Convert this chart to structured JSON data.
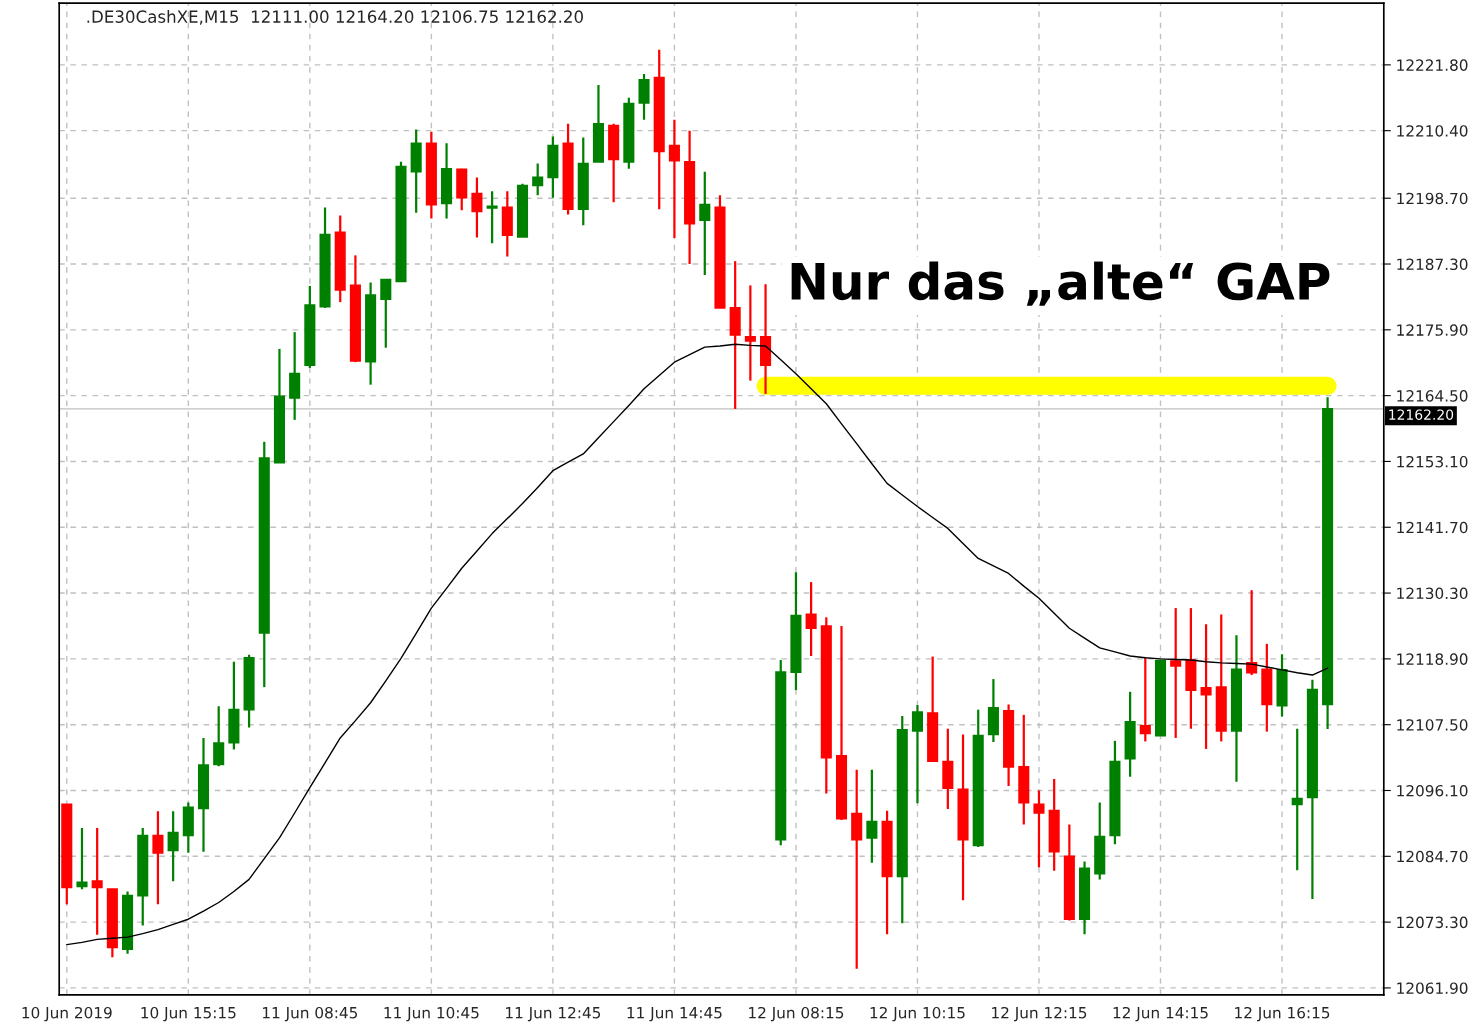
{
  "chart_data": {
    "type": "candlestick",
    "title": ".DE30CashXE,M15  12111.00 12164.20 12106.75 12162.20",
    "categories": [
      "10 Jun 2019",
      null,
      null,
      null,
      null,
      null,
      null,
      null,
      "10 Jun 15:15",
      null,
      null,
      null,
      null,
      null,
      null,
      null,
      "11 Jun 08:45",
      null,
      null,
      null,
      null,
      null,
      null,
      null,
      "11 Jun 10:45",
      null,
      null,
      null,
      null,
      null,
      null,
      null,
      "11 Jun 12:45",
      null,
      null,
      null,
      null,
      null,
      null,
      null,
      "11 Jun 14:45",
      null,
      null,
      null,
      null,
      null,
      null,
      null,
      "12 Jun 08:15",
      null,
      null,
      null,
      null,
      null,
      null,
      null,
      "12 Jun 10:15",
      null,
      null,
      null,
      null,
      null,
      null,
      null,
      "12 Jun 12:15",
      null,
      null,
      null,
      null,
      null,
      null,
      null,
      "12 Jun 14:15",
      null,
      null,
      null,
      null,
      null,
      null,
      null,
      "12 Jun 16:15",
      null,
      null,
      null
    ],
    "ohlc": [
      [
        12093.7,
        12093.7,
        12076.4,
        12079.3
      ],
      [
        12079.5,
        12089.6,
        12079.0,
        12080.2
      ],
      [
        12080.4,
        12089.6,
        12071.1,
        12079.3
      ],
      [
        12079.0,
        12079.0,
        12067.2,
        12068.9
      ],
      [
        12068.6,
        12078.6,
        12067.8,
        12077.9
      ],
      [
        12077.9,
        12089.6,
        12072.7,
        12088.3
      ],
      [
        12088.3,
        12092.5,
        12076.4,
        12085.3
      ],
      [
        12085.7,
        12092.5,
        12080.4,
        12088.8
      ],
      [
        12088.3,
        12094.0,
        12085.3,
        12093.2
      ],
      [
        12093.0,
        12105.2,
        12085.5,
        12100.5
      ],
      [
        12100.6,
        12110.7,
        12100.3,
        12104.3
      ],
      [
        12104.4,
        12118.4,
        12103.2,
        12110.1
      ],
      [
        12110.1,
        12119.6,
        12107.0,
        12119.1
      ],
      [
        12123.4,
        12156.5,
        12114.0,
        12153.7
      ],
      [
        12152.9,
        12172.6,
        12152.9,
        12164.4
      ],
      [
        12164.1,
        12175.5,
        12160.3,
        12168.3
      ],
      [
        12169.8,
        12183.5,
        12169.3,
        12180.2
      ],
      [
        12179.9,
        12197.1,
        12179.7,
        12192.4
      ],
      [
        12192.8,
        12195.7,
        12180.7,
        12182.8
      ],
      [
        12183.6,
        12188.8,
        12170.3,
        12170.5
      ],
      [
        12170.4,
        12184.1,
        12166.4,
        12181.9
      ],
      [
        12181.2,
        12184.6,
        12172.8,
        12184.6
      ],
      [
        12184.3,
        12205.0,
        12184.3,
        12204.2
      ],
      [
        12203.3,
        12210.6,
        12196.2,
        12208.2
      ],
      [
        12208.2,
        12210.2,
        12195.2,
        12197.6
      ],
      [
        12197.8,
        12208.2,
        12195.2,
        12203.8
      ],
      [
        12203.7,
        12203.8,
        12196.6,
        12198.8
      ],
      [
        12199.5,
        12202.3,
        12191.9,
        12196.4
      ],
      [
        12197.0,
        12199.9,
        12190.9,
        12197.3
      ],
      [
        12197.1,
        12199.9,
        12188.6,
        12192.3
      ],
      [
        12192.0,
        12201.2,
        12192.0,
        12200.9
      ],
      [
        12200.9,
        12204.7,
        12199.2,
        12202.3
      ],
      [
        12202.3,
        12209.4,
        12198.8,
        12207.8
      ],
      [
        12208.2,
        12211.6,
        12195.9,
        12196.8
      ],
      [
        12196.8,
        12209.2,
        12194.0,
        12204.7
      ],
      [
        12205.0,
        12218.3,
        12205.0,
        12211.6
      ],
      [
        12211.3,
        12211.6,
        12198.0,
        12205.4
      ],
      [
        12205.0,
        12216.1,
        12203.8,
        12215.1
      ],
      [
        12215.2,
        12220.2,
        12212.3,
        12219.2
      ],
      [
        12219.6,
        12224.4,
        12196.8,
        12206.8
      ],
      [
        12207.8,
        12212.3,
        12191.8,
        12205.2
      ],
      [
        12205.0,
        12210.4,
        12187.3,
        12194.3
      ],
      [
        12194.9,
        12203.3,
        12185.4,
        12197.6
      ],
      [
        12197.1,
        12199.2,
        12179.7,
        12179.7
      ],
      [
        12179.7,
        12187.8,
        12162.2,
        12175.0
      ],
      [
        12174.7,
        12183.6,
        12167.1,
        12174.0
      ],
      [
        12174.7,
        12183.8,
        12164.8,
        12169.8
      ],
      [
        12087.6,
        12118.7,
        12086.6,
        12116.6
      ],
      [
        12116.6,
        12133.9,
        12113.5,
        12126.4
      ],
      [
        12126.6,
        12132.2,
        12119.4,
        12124.2
      ],
      [
        12124.6,
        12126.1,
        12095.6,
        12101.8
      ],
      [
        12102.1,
        12124.6,
        12091.0,
        12091.2
      ],
      [
        12092.1,
        12099.7,
        12065.2,
        12087.6
      ],
      [
        12087.9,
        12099.7,
        12083.6,
        12090.7
      ],
      [
        12090.7,
        12092.6,
        12071.2,
        12081.2
      ],
      [
        12081.2,
        12109.0,
        12073.1,
        12106.6
      ],
      [
        12106.4,
        12110.9,
        12093.9,
        12109.7
      ],
      [
        12109.5,
        12119.3,
        12101.2,
        12101.2
      ],
      [
        12101.1,
        12106.8,
        12092.9,
        12096.5
      ],
      [
        12096.3,
        12105.8,
        12077.1,
        12087.6
      ],
      [
        12086.6,
        12110.1,
        12086.3,
        12105.6
      ],
      [
        12105.8,
        12115.4,
        12104.5,
        12110.4
      ],
      [
        12109.9,
        12111.0,
        12096.9,
        12100.2
      ],
      [
        12100.2,
        12109.2,
        12090.2,
        12094.0
      ],
      [
        12093.7,
        12096.1,
        12082.8,
        12092.2
      ],
      [
        12092.6,
        12098.1,
        12082.2,
        12085.5
      ],
      [
        12084.7,
        12090.2,
        12073.6,
        12073.8
      ],
      [
        12073.8,
        12083.8,
        12071.2,
        12082.6
      ],
      [
        12081.7,
        12094.0,
        12080.7,
        12088.1
      ],
      [
        12088.3,
        12104.7,
        12086.8,
        12101.1
      ],
      [
        12101.6,
        12113.2,
        12098.5,
        12108.0
      ],
      [
        12107.3,
        12119.1,
        12104.6,
        12106.0
      ],
      [
        12105.6,
        12118.6,
        12105.6,
        12118.6
      ],
      [
        12118.5,
        12127.7,
        12105.2,
        12117.7
      ],
      [
        12118.7,
        12127.7,
        12106.8,
        12113.5
      ],
      [
        12113.9,
        12124.9,
        12103.3,
        12112.7
      ],
      [
        12114.0,
        12126.6,
        12104.6,
        12106.4
      ],
      [
        12106.4,
        12123.0,
        12097.6,
        12117.1
      ],
      [
        12118.2,
        12130.8,
        12116.1,
        12116.5
      ],
      [
        12117.1,
        12121.5,
        12106.3,
        12111.0
      ],
      [
        12110.8,
        12119.7,
        12108.9,
        12117.0
      ],
      [
        12093.7,
        12106.8,
        12082.3,
        12094.7
      ],
      [
        12094.9,
        12115.3,
        12077.3,
        12113.6
      ],
      [
        12111.0,
        12164.2,
        12106.75,
        12162.2
      ]
    ],
    "colors": [
      "#ff0000",
      "#008000",
      "#ff0000",
      "#ff0000",
      "#008000",
      "#008000",
      "#ff0000",
      "#008000",
      "#008000",
      "#008000",
      "#008000",
      "#008000",
      "#008000",
      "#008000",
      "#008000",
      "#008000",
      "#008000",
      "#008000",
      "#ff0000",
      "#ff0000",
      "#008000",
      "#008000",
      "#008000",
      "#008000",
      "#ff0000",
      "#008000",
      "#ff0000",
      "#ff0000",
      "#008000",
      "#ff0000",
      "#008000",
      "#008000",
      "#008000",
      "#ff0000",
      "#008000",
      "#008000",
      "#ff0000",
      "#008000",
      "#008000",
      "#ff0000",
      "#ff0000",
      "#ff0000",
      "#008000",
      "#ff0000",
      "#ff0000",
      "#ff0000",
      "#ff0000",
      "#008000",
      "#008000",
      "#ff0000",
      "#ff0000",
      "#ff0000",
      "#ff0000",
      "#008000",
      "#ff0000",
      "#008000",
      "#008000",
      "#ff0000",
      "#ff0000",
      "#ff0000",
      "#008000",
      "#008000",
      "#ff0000",
      "#ff0000",
      "#ff0000",
      "#ff0000",
      "#ff0000",
      "#008000",
      "#008000",
      "#008000",
      "#008000",
      "#ff0000",
      "#008000",
      "#ff0000",
      "#ff0000",
      "#ff0000",
      "#ff0000",
      "#008000",
      "#ff0000",
      "#ff0000",
      "#008000",
      "#008000",
      "#008000",
      "#008000"
    ],
    "series": [
      {
        "type": "line",
        "color": "#000000",
        "values": [
          12069.4,
          12069.8,
          12070.3,
          12070.5,
          12070.7,
          12071.3,
          12072.0,
          12072.9,
          12073.8,
          12075.2,
          12076.7,
          12078.6,
          12080.7,
          12084.3,
          12087.9,
          12092.2,
          12096.6,
          12100.9,
          12105.2,
          12108.2,
          12111.3,
          12115.1,
          12119.0,
          12123.3,
          12127.7,
          12131.1,
          12134.6,
          12137.6,
          12140.6,
          12143.2,
          12145.8,
          12148.6,
          12151.5,
          12153.0,
          12154.4,
          12157.2,
          12160.0,
          12162.8,
          12165.7,
          12168.0,
          12170.3,
          12171.6,
          12172.9,
          12173.1,
          12173.4,
          12173.2,
          12173.1,
          12170.7,
          12168.3,
          12165.7,
          12163.1,
          12159.6,
          12156.2,
          12152.7,
          12149.3,
          12147.3,
          12145.3,
          12143.4,
          12141.5,
          12138.9,
          12136.3,
          12135.0,
          12133.7,
          12131.5,
          12129.4,
          12126.8,
          12124.2,
          12122.5,
          12120.8,
          12120.1,
          12119.4,
          12119.1,
          12118.9,
          12118.8,
          12118.7,
          12118.4,
          12118.2,
          12118.1,
          12118.0,
          12117.5,
          12117.0,
          12116.5,
          12116.1,
          12117.3
        ]
      },
      {
        "type": "line",
        "color": "#ffff00",
        "values": [
          null,
          null,
          null,
          null,
          null,
          null,
          null,
          null,
          null,
          null,
          null,
          null,
          null,
          null,
          null,
          null,
          null,
          null,
          null,
          null,
          null,
          null,
          null,
          null,
          null,
          null,
          null,
          null,
          null,
          null,
          null,
          null,
          null,
          null,
          null,
          null,
          null,
          null,
          null,
          null,
          null,
          null,
          null,
          null,
          null,
          null,
          12166.2,
          12166.2,
          12166.2,
          12166.2,
          12166.2,
          12166.2,
          12166.2,
          12166.2,
          12166.2,
          12166.2,
          12166.2,
          12166.2,
          12166.2,
          12166.2,
          12166.2,
          12166.2,
          12166.2,
          12166.2,
          12166.2,
          12166.2,
          12166.2,
          12166.2,
          12166.2,
          12166.2,
          12166.2,
          12166.2,
          12166.2,
          12166.2,
          12166.2,
          12166.2,
          12166.2,
          12166.2,
          12166.2,
          12166.2,
          12166.2,
          12166.2,
          12166.2,
          12166.2
        ]
      }
    ],
    "ref_lines": [
      {
        "axis": "y",
        "value": 12162.2,
        "label": "12162.20",
        "color": "#c0c0c0"
      }
    ],
    "annotations": [
      "Nur das „alte“ GAP"
    ],
    "ylim": [
      12060.7,
      12232.5
    ],
    "yticks": [
      {
        "value": 12221.8,
        "label": "12221.80"
      },
      {
        "value": 12210.4,
        "label": "12210.40"
      },
      {
        "value": 12198.7,
        "label": "12198.70"
      },
      {
        "value": 12187.3,
        "label": "12187.30"
      },
      {
        "value": 12175.9,
        "label": "12175.90"
      },
      {
        "value": 12164.5,
        "label": "12164.50"
      },
      {
        "value": 12153.1,
        "label": "12153.10"
      },
      {
        "value": 12141.7,
        "label": "12141.70"
      },
      {
        "value": 12130.3,
        "label": "12130.30"
      },
      {
        "value": 12118.9,
        "label": "12118.90"
      },
      {
        "value": 12107.5,
        "label": "12107.50"
      },
      {
        "value": 12096.1,
        "label": "12096.10"
      },
      {
        "value": 12084.7,
        "label": "12084.70"
      },
      {
        "value": 12073.3,
        "label": "12073.30"
      },
      {
        "value": 12061.9,
        "label": "12061.90"
      }
    ],
    "grid": true
  }
}
